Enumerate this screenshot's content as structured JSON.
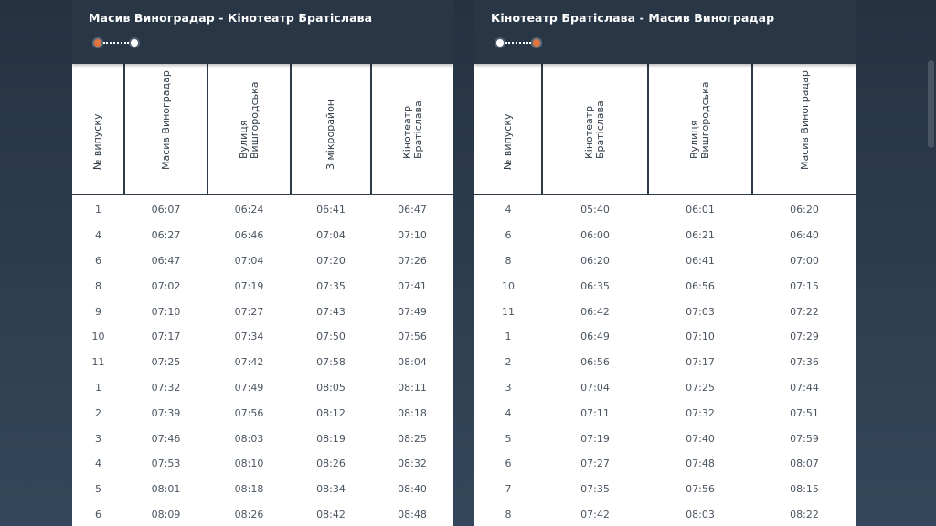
{
  "left": {
    "title": "Масив Виноградар - Кінотеатр Братіслава",
    "headers": [
      "№ випуску",
      "Масив Виноградар",
      "Вулиця Вишгородська",
      "3 мікрорайон",
      "Кінотеатр Братіслава"
    ],
    "rows": [
      [
        "1",
        "06:07",
        "06:24",
        "06:41",
        "06:47"
      ],
      [
        "4",
        "06:27",
        "06:46",
        "07:04",
        "07:10"
      ],
      [
        "6",
        "06:47",
        "07:04",
        "07:20",
        "07:26"
      ],
      [
        "8",
        "07:02",
        "07:19",
        "07:35",
        "07:41"
      ],
      [
        "9",
        "07:10",
        "07:27",
        "07:43",
        "07:49"
      ],
      [
        "10",
        "07:17",
        "07:34",
        "07:50",
        "07:56"
      ],
      [
        "11",
        "07:25",
        "07:42",
        "07:58",
        "08:04"
      ],
      [
        "1",
        "07:32",
        "07:49",
        "08:05",
        "08:11"
      ],
      [
        "2",
        "07:39",
        "07:56",
        "08:12",
        "08:18"
      ],
      [
        "3",
        "07:46",
        "08:03",
        "08:19",
        "08:25"
      ],
      [
        "4",
        "07:53",
        "08:10",
        "08:26",
        "08:32"
      ],
      [
        "5",
        "08:01",
        "08:18",
        "08:34",
        "08:40"
      ],
      [
        "6",
        "08:09",
        "08:26",
        "08:42",
        "08:48"
      ]
    ]
  },
  "right": {
    "title": "Кінотеатр Братіслава - Масив Виноградар",
    "headers": [
      "№ випуску",
      "Кінотеатр Братіслава",
      "Вулиця Вишгородська",
      "Масив Виноградар"
    ],
    "rows": [
      [
        "4",
        "05:40",
        "06:01",
        "06:20"
      ],
      [
        "6",
        "06:00",
        "06:21",
        "06:40"
      ],
      [
        "8",
        "06:20",
        "06:41",
        "07:00"
      ],
      [
        "10",
        "06:35",
        "06:56",
        "07:15"
      ],
      [
        "11",
        "06:42",
        "07:03",
        "07:22"
      ],
      [
        "1",
        "06:49",
        "07:10",
        "07:29"
      ],
      [
        "2",
        "06:56",
        "07:17",
        "07:36"
      ],
      [
        "3",
        "07:04",
        "07:25",
        "07:44"
      ],
      [
        "4",
        "07:11",
        "07:32",
        "07:51"
      ],
      [
        "5",
        "07:19",
        "07:40",
        "07:59"
      ],
      [
        "6",
        "07:27",
        "07:48",
        "08:07"
      ],
      [
        "7",
        "07:35",
        "07:56",
        "08:15"
      ],
      [
        "8",
        "07:42",
        "08:03",
        "08:22"
      ]
    ]
  },
  "colors": {
    "header_bg": "#283646",
    "accent_stop": "#e0743e",
    "table_border": "#2f3b47"
  },
  "icons": {
    "route": "route-line-icon"
  }
}
